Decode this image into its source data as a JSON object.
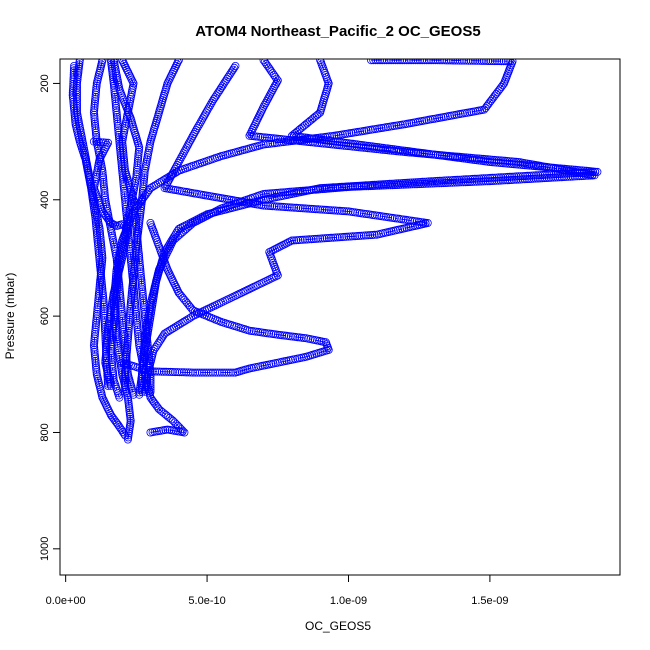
{
  "chart_data": {
    "type": "scatter",
    "title": "ATOM4 Northeast_Pacific_2 OC_GEOS5",
    "xlabel": "OC_GEOS5",
    "ylabel": "Pressure (mbar)",
    "xlim": [
      -2e-11,
      1.96e-09
    ],
    "ylim": [
      1045,
      158
    ],
    "y_reversed": true,
    "x_ticks": [
      0,
      5e-10,
      1e-09,
      1.5e-09
    ],
    "x_tick_labels": [
      "0.0e+00",
      "5.0e-10",
      "1.0e-09",
      "1.5e-09"
    ],
    "y_ticks": [
      200,
      400,
      600,
      800,
      1000
    ],
    "y_tick_labels": [
      "200",
      "400",
      "600",
      "800",
      "1000"
    ],
    "marker": "open-circle",
    "connect_lines": true,
    "grid": false,
    "color": "#0000ff",
    "series": [
      {
        "points": [
          [
            1.08e-09,
            160
          ],
          [
            1.3e-09,
            160
          ],
          [
            1.58e-09,
            162
          ],
          [
            1.55e-09,
            200
          ],
          [
            1.48e-09,
            245
          ],
          [
            1.2e-09,
            270
          ],
          [
            9.5e-10,
            290
          ],
          [
            7e-10,
            305
          ],
          [
            5.5e-10,
            325
          ],
          [
            4e-10,
            350
          ],
          [
            3e-10,
            380
          ],
          [
            2.4e-10,
            420
          ],
          [
            2e-10,
            470
          ],
          [
            1.8e-10,
            520
          ],
          [
            1.7e-10,
            580
          ],
          [
            1.8e-10,
            640
          ],
          [
            2e-10,
            700
          ],
          [
            2.2e-10,
            740
          ],
          [
            2.3e-10,
            780
          ],
          [
            2.2e-10,
            812
          ]
        ]
      },
      {
        "points": [
          [
            9e-10,
            160
          ],
          [
            9.3e-10,
            200
          ],
          [
            9e-10,
            250
          ],
          [
            8e-10,
            290
          ],
          [
            1.5e-09,
            335
          ],
          [
            1.88e-09,
            352
          ],
          [
            1.3e-09,
            368
          ],
          [
            9e-10,
            380
          ],
          [
            7e-10,
            400
          ],
          [
            5e-10,
            425
          ],
          [
            4e-10,
            450
          ],
          [
            3.5e-10,
            490
          ],
          [
            3.2e-10,
            540
          ],
          [
            3e-10,
            600
          ],
          [
            2.8e-10,
            660
          ],
          [
            2.7e-10,
            700
          ],
          [
            2.6e-10,
            735
          ]
        ]
      },
      {
        "points": [
          [
            7e-10,
            160
          ],
          [
            7.5e-10,
            195
          ],
          [
            7e-10,
            240
          ],
          [
            6.5e-10,
            290
          ],
          [
            1.2e-09,
            318
          ],
          [
            1.6e-09,
            335
          ],
          [
            1.87e-09,
            358
          ],
          [
            1.5e-09,
            368
          ],
          [
            1e-09,
            378
          ],
          [
            7e-10,
            390
          ],
          [
            5.5e-10,
            415
          ],
          [
            4.5e-10,
            440
          ],
          [
            3.8e-10,
            470
          ],
          [
            3.3e-10,
            520
          ],
          [
            3e-10,
            580
          ],
          [
            2.8e-10,
            640
          ],
          [
            2.7e-10,
            700
          ],
          [
            2.7e-10,
            730
          ]
        ]
      },
      {
        "points": [
          [
            6e-10,
            170
          ],
          [
            5.2e-10,
            230
          ],
          [
            4.5e-10,
            290
          ],
          [
            3.5e-10,
            380
          ],
          [
            7e-10,
            410
          ],
          [
            1e-09,
            420
          ],
          [
            1.28e-09,
            440
          ],
          [
            1.1e-09,
            460
          ],
          [
            8e-10,
            470
          ],
          [
            7.2e-10,
            490
          ],
          [
            7.5e-10,
            530
          ],
          [
            6e-10,
            565
          ],
          [
            4.5e-10,
            600
          ],
          [
            3.5e-10,
            630
          ],
          [
            3.1e-10,
            660
          ],
          [
            2.9e-10,
            700
          ],
          [
            2.8e-10,
            730
          ]
        ]
      },
      {
        "points": [
          [
            2e-10,
            680
          ],
          [
            3e-10,
            695
          ],
          [
            4.5e-10,
            697
          ],
          [
            6e-10,
            697
          ],
          [
            6.5e-10,
            690
          ],
          [
            7.5e-10,
            680
          ],
          [
            8.5e-10,
            670
          ],
          [
            9.3e-10,
            658
          ],
          [
            9.2e-10,
            645
          ],
          [
            8.5e-10,
            638
          ],
          [
            7.5e-10,
            632
          ],
          [
            6.5e-10,
            625
          ],
          [
            5.5e-10,
            610
          ],
          [
            4.5e-10,
            590
          ],
          [
            4e-10,
            560
          ],
          [
            3.6e-10,
            520
          ],
          [
            3.3e-10,
            480
          ],
          [
            3e-10,
            440
          ]
        ]
      },
      {
        "points": [
          [
            3e-10,
            800
          ],
          [
            3.6e-10,
            795
          ],
          [
            4.2e-10,
            800
          ],
          [
            3.8e-10,
            780
          ],
          [
            3.3e-10,
            760
          ],
          [
            3e-10,
            740
          ],
          [
            2.8e-10,
            700
          ],
          [
            2.6e-10,
            650
          ],
          [
            2.5e-10,
            600
          ],
          [
            2.4e-10,
            550
          ],
          [
            2.3e-10,
            500
          ],
          [
            2.2e-10,
            450
          ],
          [
            2.1e-10,
            400
          ],
          [
            2e-10,
            350
          ],
          [
            1.9e-10,
            300
          ],
          [
            1.8e-10,
            250
          ],
          [
            1.7e-10,
            200
          ],
          [
            1.6e-10,
            160
          ]
        ]
      },
      {
        "points": [
          [
            5e-11,
            160
          ],
          [
            4e-11,
            200
          ],
          [
            4e-11,
            250
          ],
          [
            6e-11,
            300
          ],
          [
            8e-11,
            350
          ],
          [
            1e-10,
            400
          ],
          [
            1.2e-10,
            450
          ],
          [
            1.3e-10,
            500
          ],
          [
            1.2e-10,
            550
          ],
          [
            1.1e-10,
            600
          ],
          [
            1e-10,
            650
          ],
          [
            1.1e-10,
            700
          ],
          [
            1.3e-10,
            740
          ],
          [
            1.6e-10,
            770
          ],
          [
            1.9e-10,
            790
          ],
          [
            2.1e-10,
            805
          ]
        ]
      },
      {
        "points": [
          [
            1.3e-10,
            160
          ],
          [
            1.1e-10,
            200
          ],
          [
            1e-10,
            250
          ],
          [
            1.1e-10,
            300
          ],
          [
            1.3e-10,
            350
          ],
          [
            1.4e-10,
            400
          ],
          [
            1.6e-10,
            450
          ],
          [
            1.8e-10,
            500
          ],
          [
            1.9e-10,
            550
          ],
          [
            2e-10,
            600
          ],
          [
            2.1e-10,
            650
          ],
          [
            2.2e-10,
            700
          ],
          [
            2.4e-10,
            735
          ]
        ]
      },
      {
        "points": [
          [
            3e-11,
            170
          ],
          [
            2.5e-11,
            220
          ],
          [
            3.5e-11,
            270
          ],
          [
            5e-11,
            300
          ],
          [
            7e-11,
            330
          ],
          [
            9e-11,
            380
          ],
          [
            1.05e-10,
            430
          ],
          [
            1.15e-10,
            480
          ],
          [
            1.25e-10,
            530
          ],
          [
            1.35e-10,
            580
          ],
          [
            1.4e-10,
            630
          ],
          [
            1.45e-10,
            680
          ],
          [
            1.5e-10,
            720
          ]
        ]
      },
      {
        "points": [
          [
            2e-10,
            160
          ],
          [
            2.4e-10,
            200
          ],
          [
            2.2e-10,
            250
          ],
          [
            2e-10,
            300
          ],
          [
            2.1e-10,
            350
          ],
          [
            2.4e-10,
            400
          ],
          [
            2.5e-10,
            450
          ],
          [
            2.6e-10,
            500
          ],
          [
            2.7e-10,
            550
          ],
          [
            2.8e-10,
            600
          ],
          [
            2.9e-10,
            650
          ],
          [
            3e-10,
            700
          ],
          [
            3e-10,
            730
          ]
        ]
      },
      {
        "points": [
          [
            4e-10,
            160
          ],
          [
            3.6e-10,
            200
          ],
          [
            3.3e-10,
            250
          ],
          [
            3e-10,
            300
          ],
          [
            2.8e-10,
            350
          ],
          [
            2.7e-10,
            400
          ],
          [
            2.6e-10,
            440
          ],
          [
            2.5e-10,
            480
          ],
          [
            2.4e-10,
            530
          ],
          [
            2.3e-10,
            580
          ],
          [
            2.2e-10,
            640
          ],
          [
            2.1e-10,
            700
          ],
          [
            2.1e-10,
            730
          ]
        ]
      },
      {
        "points": [
          [
            1.7e-10,
            160
          ],
          [
            1.9e-10,
            210
          ],
          [
            2.3e-10,
            260
          ],
          [
            2.6e-10,
            310
          ],
          [
            2.5e-10,
            360
          ],
          [
            2.3e-10,
            410
          ],
          [
            2.1e-10,
            460
          ],
          [
            1.9e-10,
            510
          ],
          [
            1.8e-10,
            560
          ],
          [
            1.7e-10,
            610
          ],
          [
            1.6e-10,
            660
          ],
          [
            1.7e-10,
            710
          ],
          [
            1.9e-10,
            740
          ]
        ]
      },
      {
        "points": [
          [
            1e-10,
            300
          ],
          [
            1.5e-10,
            302
          ],
          [
            1.2e-10,
            330
          ],
          [
            1e-10,
            380
          ],
          [
            1.3e-10,
            420
          ],
          [
            1.6e-10,
            440
          ],
          [
            1.8e-10,
            445
          ],
          [
            2e-10,
            442
          ],
          [
            2.2e-10,
            450
          ],
          [
            2e-10,
            500
          ],
          [
            1.7e-10,
            560
          ],
          [
            1.5e-10,
            620
          ],
          [
            1.4e-10,
            680
          ],
          [
            1.6e-10,
            720
          ]
        ]
      }
    ]
  }
}
